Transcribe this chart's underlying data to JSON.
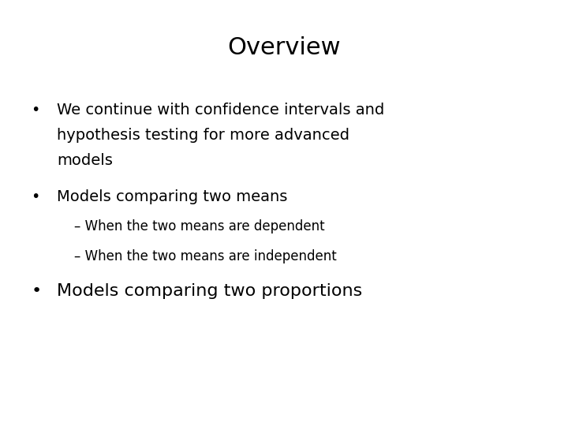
{
  "title": "Overview",
  "title_fontsize": 22,
  "background_color": "#ffffff",
  "text_color": "#000000",
  "bullet1_line1": "We continue with confidence intervals and",
  "bullet1_line2": "hypothesis testing for more advanced",
  "bullet1_line3": "models",
  "bullet2": "Models comparing two means",
  "sub1": "– When the two means are dependent",
  "sub2": "– When the two means are independent",
  "bullet3": "Models comparing two proportions",
  "bullet_fontsize": 14,
  "sub_fontsize": 12,
  "bullet3_fontsize": 16,
  "bullet_char": "•"
}
